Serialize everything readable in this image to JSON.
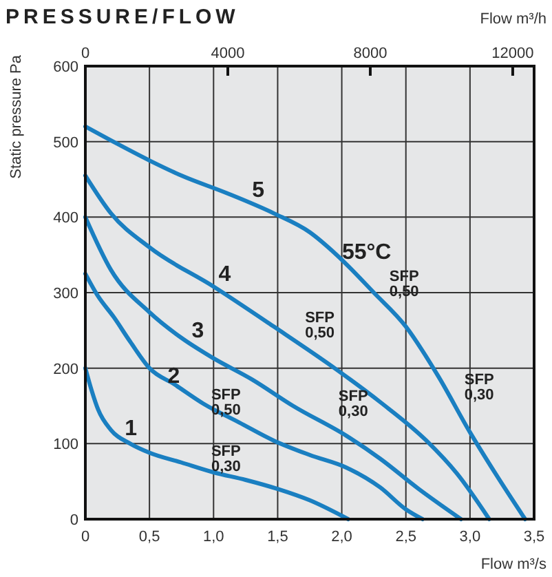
{
  "chart_data": {
    "type": "line",
    "title": "PRESSURE/FLOW",
    "xlabel": "Flow m³/s",
    "x2label": "Flow m³/h",
    "ylabel": "Static pressure Pa",
    "xlim": [
      0,
      3.5
    ],
    "ylim": [
      0,
      600
    ],
    "x2lim": [
      0,
      12600
    ],
    "xticks": [
      0,
      {
        "value": 0.5,
        "label": "0,5"
      },
      {
        "value": 1,
        "label": "1,0"
      },
      {
        "value": 1.5,
        "label": "1,5"
      },
      {
        "value": 2,
        "label": "2,0"
      },
      {
        "value": 2.5,
        "label": "2,5"
      },
      {
        "value": 3,
        "label": "3,0"
      },
      {
        "value": 3.5,
        "label": "3,5"
      }
    ],
    "yticks": [
      0,
      100,
      200,
      300,
      400,
      500,
      600
    ],
    "x2ticks": [
      0,
      4000,
      8000,
      12000
    ],
    "grid": true,
    "series": [
      {
        "color": "#1a7fc1",
        "x": [
          0,
          0.05,
          0.1,
          0.2,
          0.35,
          0.5,
          0.75,
          1.0,
          1.25,
          1.5,
          1.75,
          2.05
        ],
        "values": [
          200,
          170,
          145,
          118,
          100,
          88,
          75,
          62,
          52,
          40,
          25,
          0
        ]
      },
      {
        "color": "#1a7fc1",
        "x": [
          0,
          0.1,
          0.22,
          0.35,
          0.5,
          0.7,
          0.92,
          1.2,
          1.47,
          1.75,
          2.04,
          2.3,
          2.5,
          2.63
        ],
        "values": [
          325,
          295,
          268,
          235,
          200,
          178,
          153,
          128,
          104,
          85,
          68,
          42,
          13,
          0
        ]
      },
      {
        "color": "#1a7fc1",
        "x": [
          0,
          0.2,
          0.5,
          0.75,
          1.0,
          1.3,
          1.62,
          2.04,
          2.3,
          2.6,
          2.93
        ],
        "values": [
          400,
          330,
          274,
          240,
          213,
          185,
          150,
          110,
          80,
          40,
          0
        ]
      },
      {
        "color": "#1a7fc1",
        "x": [
          0,
          0.2,
          0.5,
          1.0,
          1.47,
          1.96,
          2.3,
          2.66,
          2.9,
          3.15
        ],
        "values": [
          455,
          405,
          360,
          308,
          255,
          198,
          155,
          104,
          60,
          0
        ]
      },
      {
        "color": "#1a7fc1",
        "x": [
          0,
          0.25,
          0.5,
          0.75,
          1.1,
          1.47,
          1.75,
          1.96,
          2.25,
          2.5,
          2.75,
          3.0,
          3.2,
          3.43
        ],
        "values": [
          520,
          497,
          475,
          455,
          432,
          405,
          380,
          350,
          300,
          255,
          190,
          115,
          60,
          0
        ]
      }
    ],
    "annotations": [
      "1",
      "2",
      "3",
      "4",
      "5",
      "55°C",
      "SFP 0,50",
      "SFP 0,30",
      "SFP 0,50",
      "SFP 0,30",
      "SFP 0,50",
      "SFP 0,30"
    ]
  }
}
